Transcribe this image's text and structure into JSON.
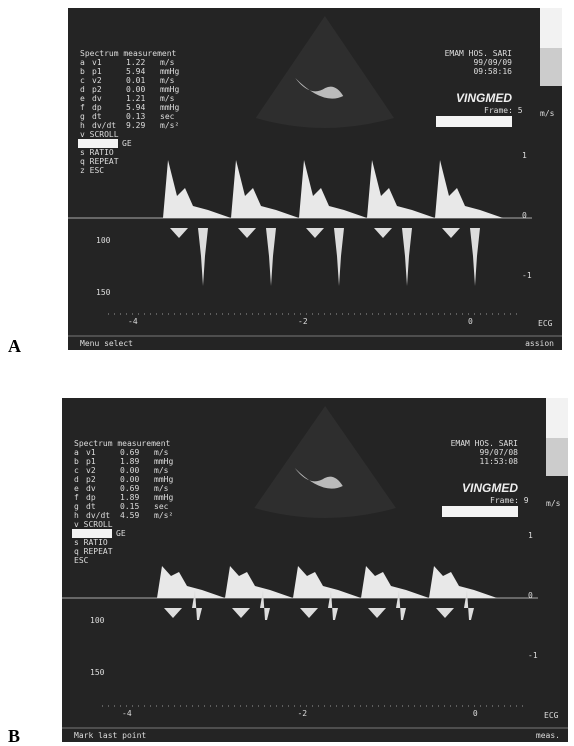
{
  "panels": [
    {
      "label": "A",
      "menu_title": "Spectrum measurement",
      "rows": [
        [
          "a",
          "v1",
          "1.22",
          "m/s"
        ],
        [
          "b",
          "p1",
          "5.94",
          "mmHg"
        ],
        [
          "c",
          "v2",
          "0.01",
          "m/s"
        ],
        [
          "d",
          "p2",
          "0.00",
          "mmHg"
        ],
        [
          "e",
          "dv",
          "1.21",
          "m/s"
        ],
        [
          "f",
          "dp",
          "5.94",
          "mmHg"
        ],
        [
          "g",
          "dt",
          "0.13",
          "sec"
        ],
        [
          "h",
          "dv/dt",
          "9.29",
          "m/s²"
        ]
      ],
      "options": [
        "v SCROLL",
        "GE",
        "s RATIO",
        "q REPEAT",
        "z ESC"
      ],
      "hospital": "EMAM HOS. SARI",
      "date": "99/09/09",
      "time": "09:58:16",
      "brand": "VINGMED",
      "frame": "Frame: 5",
      "unit": "m/s",
      "scale": [
        "1",
        "0",
        "-1"
      ],
      "depth": [
        "100",
        "150"
      ],
      "time_ticks": [
        "-4",
        "-2",
        "0"
      ],
      "ecg": "ECG",
      "status_left": "Menu select",
      "status_right": "assion"
    },
    {
      "label": "B",
      "menu_title": "Spectrum measurement",
      "rows": [
        [
          "a",
          "v1",
          "0.69",
          "m/s"
        ],
        [
          "b",
          "p1",
          "1.89",
          "mmHg"
        ],
        [
          "c",
          "v2",
          "0.00",
          "m/s"
        ],
        [
          "d",
          "p2",
          "0.00",
          "mmHg"
        ],
        [
          "e",
          "dv",
          "0.69",
          "m/s"
        ],
        [
          "f",
          "dp",
          "1.89",
          "mmHg"
        ],
        [
          "g",
          "dt",
          "0.15",
          "sec"
        ],
        [
          "h",
          "dv/dt",
          "4.59",
          "m/s²"
        ]
      ],
      "options": [
        "v SCROLL",
        "GE",
        "s RATIO",
        "q REPEAT",
        "ESC"
      ],
      "hospital": "EMAM HOS. SARI",
      "date": "99/07/08",
      "time": "11:53:08",
      "brand": "VINGMED",
      "frame": "Frame: 9",
      "unit": "m/s",
      "scale": [
        "1",
        "0",
        "-1"
      ],
      "depth": [
        "100",
        "150"
      ],
      "time_ticks": [
        "-4",
        "-2",
        "0"
      ],
      "ecg": "ECG",
      "status_left": "Mark last point",
      "status_right": "meas."
    }
  ]
}
